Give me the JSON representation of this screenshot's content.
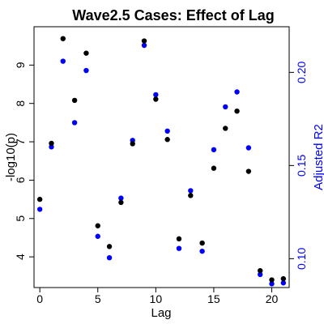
{
  "chart_data": {
    "type": "scatter",
    "title": "Wave2.5 Cases: Effect of Lag",
    "xlabel": "Lag",
    "ylabel": "-log10(p)",
    "y2label": "Adjusted R2",
    "xlim": [
      -0.5,
      21.5
    ],
    "ylim": [
      3.2,
      10.0
    ],
    "y2lim": [
      0.0845,
      0.2245
    ],
    "xticks": [
      "0",
      "5",
      "10",
      "15",
      "20"
    ],
    "yticks": [
      "4",
      "5",
      "6",
      "7",
      "8",
      "9"
    ],
    "y2ticks": [
      "0.10",
      "0.15",
      "0.20"
    ],
    "colors": {
      "left_axis": "#000000",
      "right_axis": "#0000ff",
      "series_left": "#000000",
      "series_right": "#0000ff"
    },
    "series": [
      {
        "axis": "left",
        "x": [
          0,
          1,
          2,
          3,
          4,
          5,
          6,
          7,
          8,
          9,
          10,
          11,
          12,
          13,
          14,
          15,
          16,
          17,
          18,
          19,
          20,
          21
        ],
        "values": [
          5.5,
          6.96,
          9.69,
          8.08,
          9.31,
          4.81,
          4.27,
          5.42,
          6.95,
          9.63,
          8.11,
          7.06,
          4.47,
          5.6,
          4.36,
          6.31,
          7.35,
          7.8,
          6.23,
          3.64,
          3.4,
          3.43
        ]
      },
      {
        "axis": "right",
        "x": [
          0,
          1,
          2,
          3,
          4,
          5,
          6,
          7,
          8,
          9,
          10,
          11,
          12,
          13,
          14,
          15,
          16,
          17,
          18,
          19,
          20,
          21
        ],
        "values": [
          0.1265,
          0.16,
          0.206,
          0.173,
          0.201,
          0.112,
          0.1005,
          0.1325,
          0.1635,
          0.2145,
          0.188,
          0.1685,
          0.1055,
          0.1365,
          0.104,
          0.1585,
          0.1815,
          0.1895,
          0.1595,
          0.0915,
          0.0865,
          0.087
        ]
      }
    ]
  }
}
